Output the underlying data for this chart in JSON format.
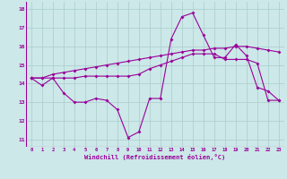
{
  "x": [
    0,
    1,
    2,
    3,
    4,
    5,
    6,
    7,
    8,
    9,
    10,
    11,
    12,
    13,
    14,
    15,
    16,
    17,
    18,
    19,
    20,
    21,
    22,
    23
  ],
  "line1": [
    14.3,
    13.9,
    14.3,
    13.5,
    13.0,
    13.0,
    13.2,
    13.1,
    12.6,
    11.1,
    11.4,
    13.2,
    13.2,
    16.4,
    17.6,
    17.8,
    16.6,
    15.4,
    15.4,
    16.1,
    15.5,
    13.8,
    13.6,
    13.1
  ],
  "line2": [
    14.3,
    14.3,
    14.3,
    14.3,
    14.3,
    14.4,
    14.4,
    14.4,
    14.4,
    14.4,
    14.5,
    14.8,
    15.0,
    15.2,
    15.4,
    15.6,
    15.6,
    15.6,
    15.3,
    15.3,
    15.3,
    15.1,
    13.1,
    13.1
  ],
  "line3": [
    14.3,
    14.3,
    14.5,
    14.6,
    14.7,
    14.8,
    14.9,
    15.0,
    15.1,
    15.2,
    15.3,
    15.4,
    15.5,
    15.6,
    15.7,
    15.8,
    15.8,
    15.9,
    15.9,
    16.0,
    16.0,
    15.9,
    15.8,
    15.7
  ],
  "line_color": "#990099",
  "bg_color": "#cce8e8",
  "grid_color": "#aacccc",
  "xlabel": "Windchill (Refroidissement éolien,°C)",
  "xlim": [
    -0.5,
    23.5
  ],
  "ylim": [
    10.6,
    18.4
  ],
  "yticks": [
    11,
    12,
    13,
    14,
    15,
    16,
    17,
    18
  ],
  "xticks": [
    0,
    1,
    2,
    3,
    4,
    5,
    6,
    7,
    8,
    9,
    10,
    11,
    12,
    13,
    14,
    15,
    16,
    17,
    18,
    19,
    20,
    21,
    22,
    23
  ]
}
